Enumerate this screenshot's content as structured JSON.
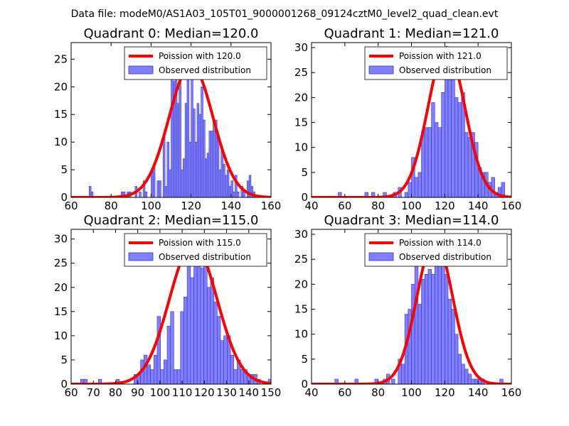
{
  "figure": {
    "suptitle": "Data file: modeM0/AS1A03_105T01_9000001268_09124cztM0_level2_quad_clean.evt"
  },
  "colors": {
    "bar_fill": "#8080ff",
    "bar_edge": "#3333cc",
    "curve": "#ff0000",
    "axes": "#000000",
    "background": "#ffffff"
  },
  "chart_data": [
    {
      "type": "bar",
      "title": "Quadrant 0: Median=120.0",
      "median": 120.0,
      "xlim": [
        60,
        160
      ],
      "ylim": [
        0,
        28
      ],
      "xticks": [
        60,
        80,
        100,
        120,
        140,
        160
      ],
      "yticks": [
        0,
        5,
        10,
        15,
        20,
        25
      ],
      "legend": [
        "Poission with 120.0",
        "Observed distribution"
      ],
      "legend_position": "top-right",
      "bins": [
        {
          "x": 69.5,
          "y": 2
        },
        {
          "x": 70.5,
          "y": 1
        },
        {
          "x": 85.5,
          "y": 1
        },
        {
          "x": 86.5,
          "y": 1
        },
        {
          "x": 88.5,
          "y": 1
        },
        {
          "x": 89.5,
          "y": 1
        },
        {
          "x": 92.5,
          "y": 2
        },
        {
          "x": 94.5,
          "y": 1
        },
        {
          "x": 96.5,
          "y": 3
        },
        {
          "x": 97.5,
          "y": 1
        },
        {
          "x": 100.5,
          "y": 5
        },
        {
          "x": 101.5,
          "y": 6
        },
        {
          "x": 103.5,
          "y": 3
        },
        {
          "x": 104.5,
          "y": 3
        },
        {
          "x": 106.5,
          "y": 11
        },
        {
          "x": 107.5,
          "y": 2
        },
        {
          "x": 108.5,
          "y": 10
        },
        {
          "x": 109.5,
          "y": 5
        },
        {
          "x": 110.5,
          "y": 23
        },
        {
          "x": 111.5,
          "y": 21
        },
        {
          "x": 112.5,
          "y": 24
        },
        {
          "x": 113.5,
          "y": 17
        },
        {
          "x": 114.5,
          "y": 22
        },
        {
          "x": 115.5,
          "y": 5
        },
        {
          "x": 116.5,
          "y": 7
        },
        {
          "x": 117.5,
          "y": 17
        },
        {
          "x": 118.5,
          "y": 22
        },
        {
          "x": 119.5,
          "y": 10
        },
        {
          "x": 120.5,
          "y": 23
        },
        {
          "x": 121.5,
          "y": 16
        },
        {
          "x": 122.5,
          "y": 10
        },
        {
          "x": 123.5,
          "y": 17
        },
        {
          "x": 124.5,
          "y": 15
        },
        {
          "x": 125.5,
          "y": 20
        },
        {
          "x": 126.5,
          "y": 14
        },
        {
          "x": 127.5,
          "y": 7
        },
        {
          "x": 128.5,
          "y": 8
        },
        {
          "x": 129.5,
          "y": 12
        },
        {
          "x": 130.5,
          "y": 12
        },
        {
          "x": 131.5,
          "y": 14
        },
        {
          "x": 132.5,
          "y": 14
        },
        {
          "x": 133.5,
          "y": 11
        },
        {
          "x": 134.5,
          "y": 5
        },
        {
          "x": 135.5,
          "y": 9
        },
        {
          "x": 136.5,
          "y": 6
        },
        {
          "x": 137.5,
          "y": 4
        },
        {
          "x": 138.5,
          "y": 5
        },
        {
          "x": 139.5,
          "y": 2
        },
        {
          "x": 140.5,
          "y": 3
        },
        {
          "x": 141.5,
          "y": 1
        },
        {
          "x": 142.5,
          "y": 4
        },
        {
          "x": 143.5,
          "y": 1
        },
        {
          "x": 145.5,
          "y": 2
        },
        {
          "x": 146.5,
          "y": 1
        },
        {
          "x": 148.5,
          "y": 3
        },
        {
          "x": 149.5,
          "y": 4
        },
        {
          "x": 150.5,
          "y": 2
        },
        {
          "x": 151.5,
          "y": 1
        }
      ]
    },
    {
      "type": "bar",
      "title": "Quadrant 1: Median=121.0",
      "median": 121.0,
      "xlim": [
        40,
        160
      ],
      "ylim": [
        0,
        31
      ],
      "xticks": [
        40,
        60,
        80,
        100,
        120,
        140,
        160
      ],
      "yticks": [
        0,
        5,
        10,
        15,
        20,
        25,
        30
      ],
      "legend": [
        "Poission with 121.0",
        "Observed distribution"
      ],
      "legend_position": "top-right",
      "bins": [
        {
          "x": 57,
          "y": 1
        },
        {
          "x": 73,
          "y": 1
        },
        {
          "x": 77,
          "y": 1
        },
        {
          "x": 84,
          "y": 1
        },
        {
          "x": 90,
          "y": 1
        },
        {
          "x": 93,
          "y": 2
        },
        {
          "x": 97,
          "y": 1
        },
        {
          "x": 99,
          "y": 3
        },
        {
          "x": 101,
          "y": 8
        },
        {
          "x": 103,
          "y": 4
        },
        {
          "x": 105,
          "y": 5
        },
        {
          "x": 107,
          "y": 13
        },
        {
          "x": 109,
          "y": 14
        },
        {
          "x": 111,
          "y": 14
        },
        {
          "x": 113,
          "y": 19
        },
        {
          "x": 115,
          "y": 15
        },
        {
          "x": 117,
          "y": 14
        },
        {
          "x": 119,
          "y": 21
        },
        {
          "x": 121,
          "y": 25
        },
        {
          "x": 123,
          "y": 30
        },
        {
          "x": 125,
          "y": 26
        },
        {
          "x": 127,
          "y": 20
        },
        {
          "x": 129,
          "y": 19
        },
        {
          "x": 131,
          "y": 21
        },
        {
          "x": 133,
          "y": 13
        },
        {
          "x": 135,
          "y": 12
        },
        {
          "x": 137,
          "y": 13
        },
        {
          "x": 139,
          "y": 11
        },
        {
          "x": 141,
          "y": 6
        },
        {
          "x": 143,
          "y": 5
        },
        {
          "x": 145,
          "y": 5
        },
        {
          "x": 147,
          "y": 3
        },
        {
          "x": 149,
          "y": 4
        },
        {
          "x": 151,
          "y": 1
        },
        {
          "x": 153,
          "y": 2
        },
        {
          "x": 155,
          "y": 3
        }
      ]
    },
    {
      "type": "bar",
      "title": "Quadrant 2: Median=115.0",
      "median": 115.0,
      "xlim": [
        60,
        150
      ],
      "ylim": [
        0,
        32
      ],
      "xticks": [
        60,
        70,
        80,
        90,
        100,
        110,
        120,
        130,
        140,
        150
      ],
      "yticks": [
        0,
        5,
        10,
        15,
        20,
        25,
        30
      ],
      "legend": [
        "Poission with 115.0",
        "Observed distribution"
      ],
      "legend_position": "top-right",
      "bins": [
        {
          "x": 65,
          "y": 1
        },
        {
          "x": 66.5,
          "y": 1
        },
        {
          "x": 73,
          "y": 1
        },
        {
          "x": 81,
          "y": 1
        },
        {
          "x": 89,
          "y": 2
        },
        {
          "x": 90.5,
          "y": 2
        },
        {
          "x": 92,
          "y": 5
        },
        {
          "x": 93.5,
          "y": 6
        },
        {
          "x": 95,
          "y": 4
        },
        {
          "x": 96.5,
          "y": 3
        },
        {
          "x": 98,
          "y": 6
        },
        {
          "x": 99.5,
          "y": 14
        },
        {
          "x": 101,
          "y": 3
        },
        {
          "x": 102.5,
          "y": 5
        },
        {
          "x": 104,
          "y": 12
        },
        {
          "x": 105.5,
          "y": 15
        },
        {
          "x": 107,
          "y": 3
        },
        {
          "x": 108.5,
          "y": 3
        },
        {
          "x": 110,
          "y": 15
        },
        {
          "x": 111.5,
          "y": 18
        },
        {
          "x": 113,
          "y": 27
        },
        {
          "x": 114.5,
          "y": 22
        },
        {
          "x": 116,
          "y": 26
        },
        {
          "x": 117.5,
          "y": 25
        },
        {
          "x": 119,
          "y": 24
        },
        {
          "x": 120.5,
          "y": 29
        },
        {
          "x": 122,
          "y": 20
        },
        {
          "x": 123.5,
          "y": 22
        },
        {
          "x": 125,
          "y": 17
        },
        {
          "x": 126.5,
          "y": 14
        },
        {
          "x": 128,
          "y": 9
        },
        {
          "x": 129.5,
          "y": 10
        },
        {
          "x": 131,
          "y": 10
        },
        {
          "x": 132.5,
          "y": 6
        },
        {
          "x": 134,
          "y": 3
        },
        {
          "x": 135.5,
          "y": 5
        },
        {
          "x": 137,
          "y": 3
        },
        {
          "x": 138.5,
          "y": 3
        },
        {
          "x": 140,
          "y": 2
        },
        {
          "x": 141.5,
          "y": 2
        },
        {
          "x": 143,
          "y": 2
        },
        {
          "x": 144.5,
          "y": 1
        },
        {
          "x": 149.5,
          "y": 1
        }
      ]
    },
    {
      "type": "bar",
      "title": "Quadrant 3: Median=114.0",
      "median": 114.0,
      "xlim": [
        40,
        160
      ],
      "ylim": [
        0,
        31
      ],
      "xticks": [
        40,
        60,
        80,
        100,
        120,
        140,
        160
      ],
      "yticks": [
        0,
        5,
        10,
        15,
        20,
        25,
        30
      ],
      "legend": [
        "Poission with 114.0",
        "Observed distribution"
      ],
      "legend_position": "top-right",
      "bins": [
        {
          "x": 55,
          "y": 1
        },
        {
          "x": 67,
          "y": 1
        },
        {
          "x": 79,
          "y": 1
        },
        {
          "x": 84,
          "y": 1
        },
        {
          "x": 86,
          "y": 2
        },
        {
          "x": 89,
          "y": 1
        },
        {
          "x": 93,
          "y": 5
        },
        {
          "x": 95,
          "y": 4
        },
        {
          "x": 97,
          "y": 14
        },
        {
          "x": 99,
          "y": 15
        },
        {
          "x": 101,
          "y": 20
        },
        {
          "x": 103,
          "y": 24
        },
        {
          "x": 105,
          "y": 16
        },
        {
          "x": 107,
          "y": 21
        },
        {
          "x": 109,
          "y": 22
        },
        {
          "x": 111,
          "y": 23
        },
        {
          "x": 113,
          "y": 22
        },
        {
          "x": 115,
          "y": 27
        },
        {
          "x": 117,
          "y": 29
        },
        {
          "x": 119,
          "y": 27
        },
        {
          "x": 121,
          "y": 22
        },
        {
          "x": 123,
          "y": 17
        },
        {
          "x": 125,
          "y": 15
        },
        {
          "x": 127,
          "y": 10
        },
        {
          "x": 129,
          "y": 6
        },
        {
          "x": 131,
          "y": 4
        },
        {
          "x": 133,
          "y": 3
        },
        {
          "x": 135,
          "y": 2
        },
        {
          "x": 137,
          "y": 1
        },
        {
          "x": 139,
          "y": 1
        },
        {
          "x": 141,
          "y": 1
        },
        {
          "x": 143,
          "y": 1
        },
        {
          "x": 154,
          "y": 1
        }
      ]
    }
  ]
}
